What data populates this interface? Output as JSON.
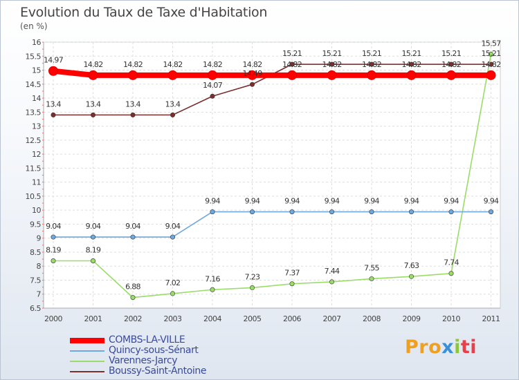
{
  "title": "Evolution du Taux de Taxe d'Habitation",
  "subtitle": "(en %)",
  "logo": {
    "p1": "Pro",
    "p2": "x",
    "p3": "i",
    "p4": "ti"
  },
  "chart_data": {
    "type": "line",
    "x": [
      "2000",
      "2001",
      "2002",
      "2003",
      "2004",
      "2005",
      "2006",
      "2007",
      "2008",
      "2009",
      "2010",
      "2011"
    ],
    "yticks": [
      "6.5",
      "7",
      "7.5",
      "8",
      "8.5",
      "9",
      "9.5",
      "10",
      "10.5",
      "11",
      "11.5",
      "12",
      "12.5",
      "13",
      "13.5",
      "14",
      "14.5",
      "15",
      "15.5",
      "16"
    ],
    "ylim": [
      6.5,
      16
    ],
    "grid": true,
    "legend_position": "bottom-left",
    "series": [
      {
        "name": "COMBS-LA-VILLE",
        "color": "#ff0000",
        "values": [
          14.97,
          14.82,
          14.82,
          14.82,
          14.82,
          14.82,
          14.82,
          14.82,
          14.82,
          14.82,
          14.82,
          14.82
        ],
        "labels": [
          "14.97",
          "14.82",
          "14.82",
          "14.82",
          "14.82",
          "14.82",
          "14.82",
          "14.82",
          "14.82",
          "14.82",
          "14.82",
          "14.82"
        ]
      },
      {
        "name": "Quincy-sous-Sénart",
        "color": "#6fa8dc",
        "values": [
          9.04,
          9.04,
          9.04,
          9.04,
          9.94,
          9.94,
          9.94,
          9.94,
          9.94,
          9.94,
          9.94,
          9.94
        ],
        "labels": [
          "9.04",
          "9.04",
          "9.04",
          "9.04",
          "9.94",
          "9.94",
          "9.94",
          "9.94",
          "9.94",
          "9.94",
          "9.94",
          "9.94"
        ]
      },
      {
        "name": "Varennes-Jarcy",
        "color": "#99dd66",
        "values": [
          8.19,
          8.19,
          6.88,
          7.02,
          7.16,
          7.23,
          7.37,
          7.44,
          7.55,
          7.63,
          7.74,
          15.57
        ],
        "labels": [
          "8.19",
          "8.19",
          "6.88",
          "7.02",
          "7.16",
          "7.23",
          "7.37",
          "7.44",
          "7.55",
          "7.63",
          "7.74",
          "15.57"
        ]
      },
      {
        "name": "Boussy-Saint-Antoine",
        "color": "#7a2e2e",
        "values": [
          13.4,
          13.4,
          13.4,
          13.4,
          14.07,
          14.49,
          15.21,
          15.21,
          15.21,
          15.21,
          15.21,
          15.21
        ],
        "labels": [
          "13.4",
          "13.4",
          "13.4",
          "13.4",
          "14.07",
          "14.49",
          "15.21",
          "15.21",
          "15.21",
          "15.21",
          "15.21",
          "15.21"
        ]
      }
    ]
  }
}
